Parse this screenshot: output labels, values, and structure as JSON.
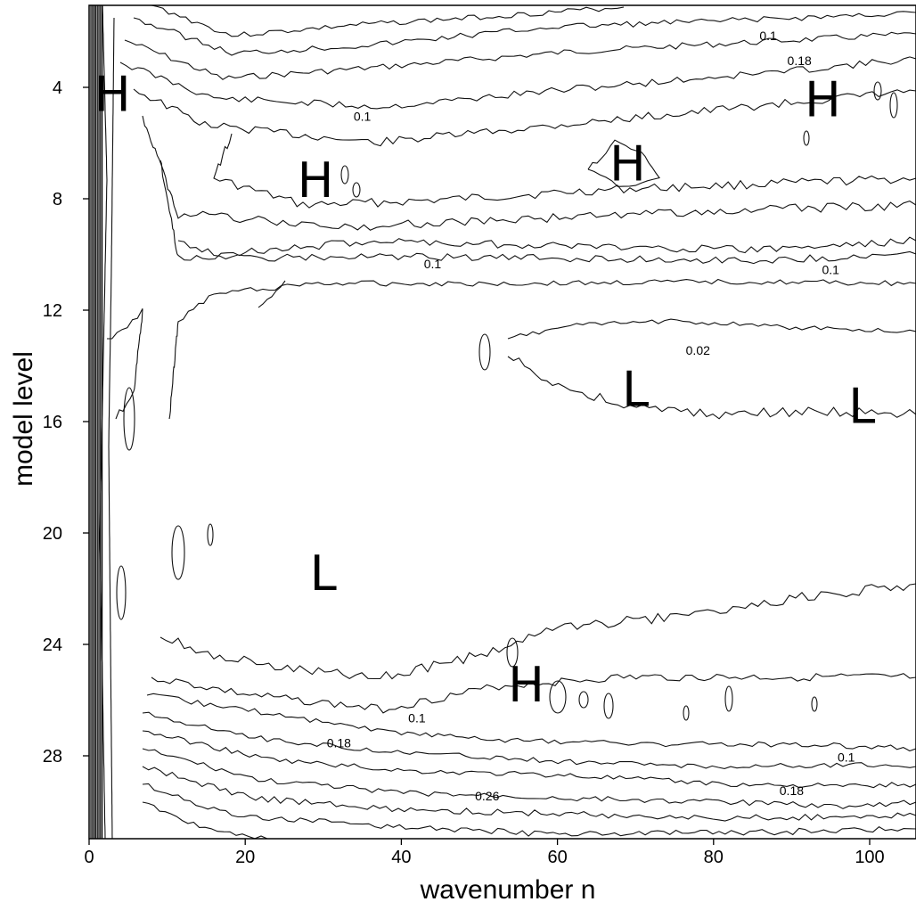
{
  "chart_data": {
    "type": "contour",
    "xlabel": "wavenumber n",
    "ylabel": "model level",
    "xlim": [
      0,
      105
    ],
    "ylim": [
      31,
      1
    ],
    "x_ticks": [
      0,
      20,
      40,
      60,
      80,
      100
    ],
    "y_ticks": [
      4,
      8,
      12,
      16,
      20,
      24,
      28
    ],
    "contour_levels": [
      0.02,
      0.1,
      0.18,
      0.26
    ],
    "contour_labels": [
      {
        "text": "0.1",
        "x": 87,
        "y": 2.3
      },
      {
        "text": "0.18",
        "x": 91,
        "y": 3.2
      },
      {
        "text": "0.1",
        "x": 35,
        "y": 5.2
      },
      {
        "text": "0.1",
        "x": 44,
        "y": 10.5
      },
      {
        "text": "0.1",
        "x": 95,
        "y": 10.7
      },
      {
        "text": "0.02",
        "x": 78,
        "y": 13.6
      },
      {
        "text": "0.1",
        "x": 42,
        "y": 26.8
      },
      {
        "text": "0.18",
        "x": 32,
        "y": 27.7
      },
      {
        "text": "0.1",
        "x": 97,
        "y": 28.2
      },
      {
        "text": "0.26",
        "x": 51,
        "y": 29.6
      },
      {
        "text": "0.18",
        "x": 90,
        "y": 29.4
      }
    ],
    "extrema": [
      {
        "label": "H",
        "x": 3,
        "y": 4.2
      },
      {
        "label": "H",
        "x": 94,
        "y": 4.4
      },
      {
        "label": "H",
        "x": 69,
        "y": 6.7
      },
      {
        "label": "H",
        "x": 29,
        "y": 7.3
      },
      {
        "label": "L",
        "x": 70,
        "y": 14.8
      },
      {
        "label": "L",
        "x": 99,
        "y": 15.4
      },
      {
        "label": "L",
        "x": 30,
        "y": 21.4
      },
      {
        "label": "H",
        "x": 56,
        "y": 25.4
      }
    ],
    "grid": false
  }
}
